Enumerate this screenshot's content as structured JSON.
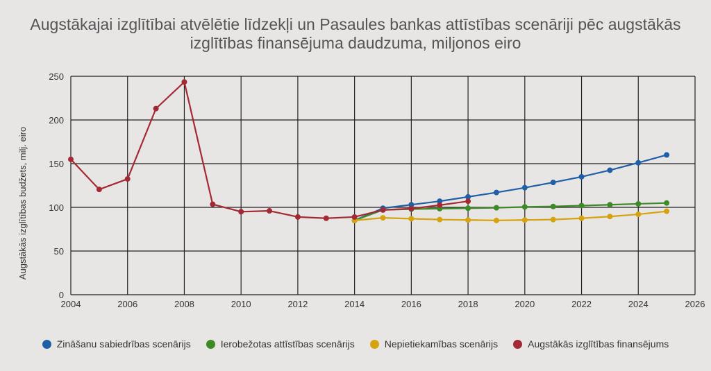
{
  "chart_data": {
    "type": "line",
    "title": "Augstākajai izglītībai atvēlētie līdzekļi un Pasaules bankas attīstības scenāriji pēc augstākās izglītības finansējuma daudzuma, miljonos eiro",
    "xlabel": "",
    "ylabel": "Augstākās izglītības budžets, milj. eiro",
    "xlim": [
      2004,
      2026
    ],
    "ylim": [
      0,
      250
    ],
    "xticks": [
      "2004",
      "2006",
      "2008",
      "2010",
      "2012",
      "2014",
      "2016",
      "2018",
      "2020",
      "2022",
      "2024",
      "2026"
    ],
    "yticks": [
      "0",
      "50",
      "100",
      "150",
      "200",
      "250"
    ],
    "grid": true,
    "legend_position": "bottom",
    "series": [
      {
        "name": "Zināšanu sabiedrības scenārijs",
        "color": "#1f5fa5",
        "x": [
          2014,
          2015,
          2016,
          2017,
          2018,
          2019,
          2020,
          2021,
          2022,
          2023,
          2024,
          2025
        ],
        "y": [
          85,
          99,
          103,
          107,
          112,
          117,
          122.5,
          128.5,
          135,
          142.5,
          151,
          160
        ]
      },
      {
        "name": "Ierobežotas attīstības scenārijs",
        "color": "#3d8a26",
        "x": [
          2014,
          2015,
          2016,
          2017,
          2018,
          2019,
          2020,
          2021,
          2022,
          2023,
          2024,
          2025
        ],
        "y": [
          85,
          97,
          98,
          98.5,
          99,
          99.5,
          100.5,
          101,
          102,
          103,
          104,
          105
        ]
      },
      {
        "name": "Nepietiekamības scenārijs",
        "color": "#d4a30f",
        "x": [
          2014,
          2015,
          2016,
          2017,
          2018,
          2019,
          2020,
          2021,
          2022,
          2023,
          2024,
          2025
        ],
        "y": [
          85,
          88,
          87,
          86,
          85.5,
          85,
          85.5,
          86,
          87.5,
          89.5,
          92,
          95.5
        ]
      },
      {
        "name": "Augstākās izglītības finansējums",
        "color": "#a32a35",
        "x": [
          2004,
          2005,
          2006,
          2007,
          2008,
          2009,
          2010,
          2011,
          2012,
          2013,
          2014,
          2015,
          2016,
          2017,
          2018
        ],
        "y": [
          155,
          120.5,
          132.5,
          213,
          243.5,
          103.5,
          95,
          96,
          89,
          87.5,
          89,
          97,
          98.5,
          102.5,
          107
        ]
      }
    ]
  }
}
